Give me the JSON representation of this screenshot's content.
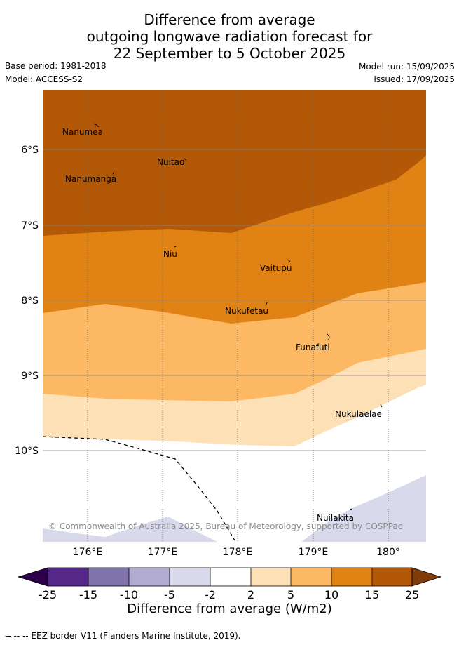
{
  "title": {
    "line1": "Difference from average",
    "line2": "outgoing longwave radiation forecast for",
    "line3": "22 September to 5 October 2025"
  },
  "meta": {
    "base_period": "Base period: 1981-2018",
    "model": "Model: ACCESS-S2",
    "model_run": "Model run: 15/09/2025",
    "issued": "Issued: 17/09/2025"
  },
  "map": {
    "lat_labels": [
      "6°S",
      "7°S",
      "8°S",
      "9°S",
      "10°S"
    ],
    "lon_labels": [
      "176°E",
      "177°E",
      "178°E",
      "179°E",
      "180°"
    ],
    "islands": [
      "Nanumea",
      "Nuitao",
      "Nanumanga",
      "Niu",
      "Vaitupu",
      "Nukufetau",
      "Funafuti",
      "Nukulaelae",
      "Nuilakita"
    ],
    "copyright": "© Commonwealth of Australia 2025, Bureau of Meteorology, supported by COSPPac",
    "colors": {
      "c15_25": "#b35806",
      "c10_15": "#e08214",
      "c5_10": "#fdb863",
      "c2_5": "#fee0b6",
      "cm5_m2": "#d8daeb",
      "cm10_m5": "#b2abd2",
      "cm15_m10": "#8073ac",
      "cm25_m15": "#542788",
      "under": "#2d004b",
      "over": "#7f3b08"
    }
  },
  "colorbar": {
    "ticks": [
      "-25",
      "-15",
      "-10",
      "-5",
      "-2",
      "2",
      "5",
      "10",
      "15",
      "25"
    ],
    "label": "Difference from average (W/m2)"
  },
  "footnote": "-- -- -- EEZ border V11 (Flanders Marine Institute, 2019)."
}
